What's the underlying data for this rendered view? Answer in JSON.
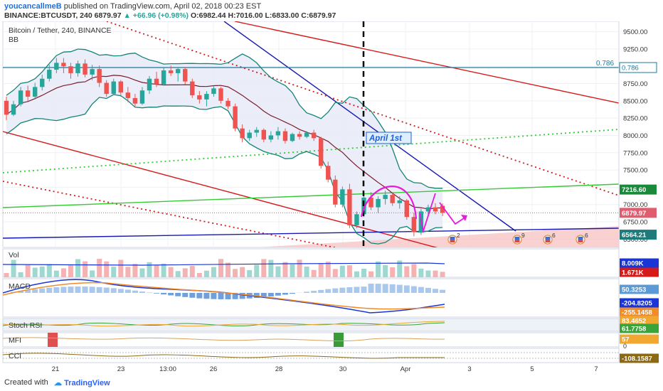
{
  "header": {
    "author": "youcancallmeB",
    "published_text": "published on TradingView.com, April 02, 2018 00:23 EST",
    "symbol_line": "BINANCE:BTCUSDT, 240",
    "last": "6879.97",
    "change": "▲ +66.96 (+0.98%)",
    "o": "O:6982.44",
    "h": "H:7016.00",
    "l": "L:6833.00",
    "c": "C:6879.97"
  },
  "main_pane": {
    "title": "Bitcoin / Tether, 240, BINANCE",
    "indicator": "BB",
    "annotation": "April 1st",
    "fib_label": "0.786",
    "event_badges": [
      "2",
      "9",
      "6",
      "6"
    ]
  },
  "price_axis": {
    "ticks": [
      "9500.00",
      "9250.00",
      "9000.00",
      "8750.00",
      "8500.00",
      "8250.00",
      "8000.00",
      "7750.00",
      "7500.00",
      "7250.00",
      "7000.00",
      "6750.00",
      "6500.00"
    ],
    "labels": [
      {
        "text": "7216.60",
        "color": "#1a8a3a"
      },
      {
        "text": "6879.97",
        "color": "#e05c6f"
      },
      {
        "text": "6564.21",
        "color": "#1f7a7a"
      }
    ],
    "fib_label": "0.786"
  },
  "panes": {
    "vol": {
      "title": "Vol",
      "labels": [
        {
          "text": "8.009K",
          "color": "#1a35d6"
        },
        {
          "text": "1.671K",
          "color": "#d61a1a"
        }
      ]
    },
    "macd": {
      "title": "MACD",
      "labels": [
        {
          "text": "50.3253",
          "color": "#5b9bd5"
        },
        {
          "text": "-204.8205",
          "color": "#1a35d6"
        },
        {
          "text": "-255.1458",
          "color": "#f08c2a"
        }
      ]
    },
    "stoch": {
      "title": "Stoch RSI",
      "labels": [
        {
          "text": "83.4652",
          "color": "#f0a830"
        },
        {
          "text": "61.7758",
          "color": "#3aa43a"
        }
      ]
    },
    "mfi": {
      "title": "MFI",
      "labels": [
        {
          "text": "57",
          "color": "#f0a830"
        }
      ]
    },
    "mfi_axis_zero": "0",
    "cci": {
      "title": "CCI",
      "labels": [
        {
          "text": "-108.1587",
          "color": "#8b6914"
        }
      ]
    }
  },
  "time_axis": [
    "21",
    "23",
    "13:00",
    "26",
    "28",
    "30",
    "Apr",
    "3",
    "5",
    "7"
  ],
  "footer": {
    "created_with": "Created with",
    "brand": "TradingView"
  },
  "colors": {
    "bull": "#26a69a",
    "bear": "#ef5350",
    "bb_basis": "#7b1c2c",
    "bb_bands": "#138575",
    "trend_red": "#d61a1a",
    "trend_blue": "#1a1ab0",
    "trend_green": "#33cc33",
    "fib": "#1f7a9a",
    "magenta": "#e81ad9"
  },
  "chart_data": {
    "type": "candlestick",
    "symbol": "BINANCE:BTCUSDT",
    "interval": "240",
    "ylim": [
      6380,
      9650
    ],
    "candles": [
      [
        8500,
        8560,
        8220,
        8300
      ],
      [
        8300,
        8500,
        8280,
        8450
      ],
      [
        8450,
        8700,
        8420,
        8650
      ],
      [
        8650,
        8720,
        8500,
        8560
      ],
      [
        8560,
        8760,
        8520,
        8700
      ],
      [
        8700,
        8880,
        8650,
        8820
      ],
      [
        8820,
        9020,
        8780,
        8950
      ],
      [
        8950,
        9120,
        8900,
        9050
      ],
      [
        9050,
        9120,
        8900,
        9000
      ],
      [
        9000,
        9050,
        8820,
        8900
      ],
      [
        8900,
        9080,
        8850,
        9040
      ],
      [
        9040,
        9100,
        8840,
        8880
      ],
      [
        8880,
        9020,
        8800,
        8960
      ],
      [
        8960,
        9010,
        8700,
        8760
      ],
      [
        8760,
        8800,
        8560,
        8600
      ],
      [
        8600,
        8820,
        8580,
        8780
      ],
      [
        8780,
        8800,
        8560,
        8620
      ],
      [
        8620,
        8700,
        8480,
        8540
      ],
      [
        8540,
        8600,
        8400,
        8460
      ],
      [
        8460,
        8700,
        8440,
        8650
      ],
      [
        8650,
        8860,
        8600,
        8820
      ],
      [
        8820,
        8920,
        8700,
        8740
      ],
      [
        8740,
        8980,
        8720,
        8940
      ],
      [
        8940,
        9010,
        8860,
        8900
      ],
      [
        8900,
        8990,
        8780,
        8960
      ],
      [
        8960,
        8990,
        8740,
        8780
      ],
      [
        8780,
        8820,
        8540,
        8580
      ],
      [
        8580,
        8640,
        8460,
        8520
      ],
      [
        8520,
        8640,
        8420,
        8600
      ],
      [
        8600,
        8720,
        8560,
        8680
      ],
      [
        8680,
        8700,
        8460,
        8500
      ],
      [
        8500,
        8540,
        8380,
        8420
      ],
      [
        8420,
        8460,
        8060,
        8100
      ],
      [
        8100,
        8160,
        7900,
        7960
      ],
      [
        7960,
        8080,
        7920,
        8040
      ],
      [
        8040,
        8120,
        7980,
        8080
      ],
      [
        8080,
        8100,
        7900,
        7940
      ],
      [
        7940,
        8060,
        7900,
        8000
      ],
      [
        8000,
        8120,
        7940,
        8060
      ],
      [
        8060,
        8100,
        7880,
        7920
      ],
      [
        7920,
        8040,
        7900,
        8020
      ],
      [
        8020,
        8060,
        7940,
        7980
      ],
      [
        7980,
        8060,
        7960,
        8040
      ],
      [
        8040,
        8080,
        7920,
        7960
      ],
      [
        7960,
        7980,
        7520,
        7560
      ],
      [
        7560,
        7620,
        7320,
        7360
      ],
      [
        7360,
        7420,
        6960,
        7000
      ],
      [
        7000,
        7260,
        6960,
        7220
      ],
      [
        7220,
        7300,
        6660,
        6700
      ],
      [
        6700,
        6900,
        6660,
        6860
      ],
      [
        6860,
        7140,
        6820,
        7100
      ],
      [
        7100,
        7180,
        6920,
        6960
      ],
      [
        6960,
        7120,
        6880,
        7080
      ],
      [
        7080,
        7200,
        7000,
        7140
      ],
      [
        7140,
        7180,
        6980,
        7020
      ],
      [
        7020,
        7120,
        6940,
        7060
      ],
      [
        7060,
        7080,
        6780,
        6820
      ],
      [
        6820,
        6880,
        6540,
        6600
      ],
      [
        6600,
        6940,
        6560,
        6900
      ],
      [
        6900,
        7000,
        6820,
        6960
      ],
      [
        6960,
        7020,
        6860,
        6900
      ],
      [
        6982,
        7016,
        6833,
        6880
      ]
    ]
  }
}
